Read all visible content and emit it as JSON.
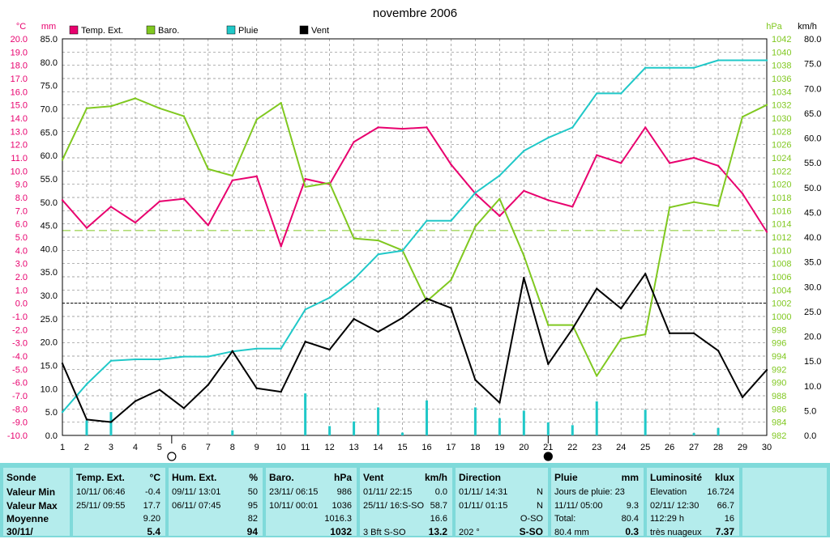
{
  "chart_data": {
    "type": "line",
    "title": "novembre 2006",
    "x": [
      1,
      2,
      3,
      4,
      5,
      6,
      7,
      8,
      9,
      10,
      11,
      12,
      13,
      14,
      15,
      16,
      17,
      18,
      19,
      20,
      21,
      22,
      23,
      24,
      25,
      26,
      27,
      28,
      29,
      30
    ],
    "axes": {
      "temp": {
        "unit": "°C",
        "min": -10,
        "max": 20,
        "step": 1,
        "ticks": [
          "20.0",
          "19.0",
          "18.0",
          "17.0",
          "16.0",
          "15.0",
          "14.0",
          "13.0",
          "12.0",
          "11.0",
          "10.0",
          "9.0",
          "8.0",
          "7.0",
          "6.0",
          "5.0",
          "4.0",
          "3.0",
          "2.0",
          "1.0",
          "0.0",
          "-1.0",
          "-2.0",
          "-3.0",
          "-4.0",
          "-5.0",
          "-6.0",
          "-7.0",
          "-8.0",
          "-9.0",
          "-10.0"
        ]
      },
      "rain": {
        "unit": "mm",
        "min": 0,
        "max": 85,
        "step": 5,
        "ticks": [
          "85.0",
          "80.0",
          "75.0",
          "70.0",
          "65.0",
          "60.0",
          "55.0",
          "50.0",
          "45.0",
          "40.0",
          "35.0",
          "30.0",
          "25.0",
          "20.0",
          "15.0",
          "10.0",
          "5.0",
          "0.0"
        ]
      },
      "baro": {
        "unit": "hPa",
        "min": 982,
        "max": 1042,
        "step": 2,
        "ticks": [
          "1042",
          "1040",
          "1038",
          "1036",
          "1034",
          "1032",
          "1030",
          "1028",
          "1026",
          "1024",
          "1022",
          "1020",
          "1018",
          "1016",
          "1014",
          "1012",
          "1010",
          "1008",
          "1006",
          "1004",
          "1002",
          "1000",
          "998",
          "996",
          "994",
          "992",
          "990",
          "988",
          "986",
          "984",
          "982"
        ]
      },
      "wind": {
        "unit": "km/h",
        "min": 0,
        "max": 80,
        "step": 5,
        "ticks": [
          "80.0",
          "75.0",
          "70.0",
          "65.0",
          "60.0",
          "55.0",
          "50.0",
          "45.0",
          "40.0",
          "35.0",
          "30.0",
          "25.0",
          "20.0",
          "15.0",
          "10.0",
          "5.0",
          "0.0"
        ]
      }
    },
    "reference_lines": {
      "baro_mean": 1013,
      "temp_zero": 0
    },
    "moon_phases": [
      {
        "day": 5.5,
        "phase": "full"
      },
      {
        "day": 21,
        "phase": "new"
      }
    ],
    "series": [
      {
        "name": "Temp. Ext.",
        "axis": "temp",
        "color": "#e8006e",
        "values": [
          7.8,
          5.7,
          7.3,
          6.1,
          7.7,
          7.9,
          5.9,
          9.3,
          9.6,
          4.3,
          9.4,
          9.0,
          12.2,
          13.3,
          13.2,
          13.3,
          10.5,
          8.3,
          6.6,
          8.5,
          7.8,
          7.3,
          11.2,
          10.6,
          13.3,
          10.6,
          11.0,
          10.4,
          8.3,
          5.4
        ]
      },
      {
        "name": "Baro.",
        "axis": "baro",
        "color": "#80c820",
        "values": [
          1023.7,
          1031.5,
          1031.8,
          1033.0,
          1031.5,
          1030.3,
          1022.3,
          1021.3,
          1029.8,
          1032.3,
          1019.6,
          1020.2,
          1011.8,
          1011.5,
          1010.0,
          1002.3,
          1005.5,
          1013.6,
          1017.8,
          1009.2,
          998.7,
          998.7,
          991.0,
          996.6,
          997.3,
          1016.5,
          1017.3,
          1016.7,
          1030.2,
          1032.0
        ]
      },
      {
        "name": "Pluie",
        "axis": "rain",
        "color": "#20c8c8",
        "values": [
          5.0,
          11.0,
          16.0,
          16.3,
          16.3,
          16.9,
          16.9,
          18.0,
          18.6,
          18.6,
          27.0,
          29.5,
          33.5,
          38.8,
          39.6,
          46.0,
          46.0,
          52.0,
          55.7,
          61.0,
          63.8,
          66.0,
          73.3,
          73.3,
          78.8,
          78.8,
          78.8,
          80.4,
          80.4,
          80.4
        ]
      },
      {
        "name": "Vent",
        "axis": "wind",
        "color": "#000000",
        "values": [
          14.5,
          3.2,
          2.7,
          6.9,
          9.2,
          5.5,
          10.2,
          17.0,
          9.5,
          8.8,
          18.9,
          17.3,
          23.5,
          20.9,
          23.7,
          27.6,
          25.7,
          11.2,
          6.6,
          31.8,
          14.4,
          21.5,
          29.6,
          25.6,
          32.6,
          20.6,
          20.6,
          17.1,
          7.7,
          13.2
        ]
      }
    ],
    "daily_rain_bars": {
      "axis": "rain",
      "color": "#20c8c8",
      "days": [
        2,
        3,
        8,
        11,
        12,
        13,
        14,
        15,
        16,
        18,
        19,
        20,
        21,
        22,
        23,
        25,
        27,
        28
      ],
      "values": [
        3.2,
        5.0,
        1.1,
        9.0,
        2.0,
        3.0,
        6.0,
        0.6,
        7.5,
        6.0,
        3.7,
        5.3,
        2.8,
        2.2,
        7.3,
        5.5,
        0.5,
        1.6
      ]
    }
  },
  "header": {
    "temp_unit": "°C",
    "rain_unit": "mm",
    "baro_unit": "hPa",
    "wind_unit": "km/h"
  },
  "legend": [
    {
      "label": "Temp. Ext.",
      "color": "#e8006e"
    },
    {
      "label": "Baro.",
      "color": "#80c820"
    },
    {
      "label": "Pluie",
      "color": "#20c8c8"
    },
    {
      "label": "Vent",
      "color": "#000000"
    }
  ],
  "stats": {
    "labels": {
      "head": "Sonde",
      "min": "Valeur Min",
      "max": "Valeur Max",
      "mean": "Moyenne",
      "date": "30/11/"
    },
    "temp": {
      "head": "Temp. Ext.",
      "unit": "°C",
      "min_date": "10/11/  06:46",
      "min_val": "-0.4",
      "max_date": "25/11/  09:55",
      "max_val": "17.7",
      "mean": "9.20",
      "current": "5.4"
    },
    "hum": {
      "head": "Hum. Ext.",
      "unit": "%",
      "min_date": "09/11/  13:01",
      "min_val": "50",
      "max_date": "06/11/  07:45",
      "max_val": "95",
      "mean": "82",
      "current": "94"
    },
    "baro": {
      "head": "Baro.",
      "unit": "hPa",
      "min_date": "23/11/  06:15",
      "min_val": "986",
      "max_date": "10/11/  00:01",
      "max_val": "1036",
      "mean": "1016.3",
      "current": "1032"
    },
    "wind": {
      "head": "Vent",
      "unit": "km/h",
      "min_date": "01/11/  22:15",
      "min_val": "0.0",
      "max_date": "25/11/  16:S-SO",
      "max_val": "58.7",
      "mean": "16.6",
      "current_bft": "3 Bft S-SO",
      "current": "13.2"
    },
    "dir": {
      "head": "Direction",
      "min_date": "01/11/  14:31",
      "min_val": "N",
      "max_date": "01/11/  01:15",
      "max_val": "N",
      "mean": "O-SO",
      "current_deg": "202 °",
      "current": "S-SO"
    },
    "rain": {
      "head": "Pluie",
      "unit": "mm",
      "row1": "Jours de pluie: 23",
      "row2_date": "11/11/  05:00",
      "row2_val": "9.3",
      "row3_label": "Total:",
      "row3_val": "80.4",
      "current_label": "80.4 mm",
      "current": "0.3"
    },
    "lum": {
      "head": "Luminosité",
      "unit": "klux",
      "row1_label": "Elevation",
      "row1_val": "16.724",
      "row2_date": "02/11/  12:30",
      "row2_val": "66.7",
      "row3_label": "112:29 h",
      "row3_val": "16",
      "current_label": "très nuageux",
      "current": "7.37"
    }
  }
}
